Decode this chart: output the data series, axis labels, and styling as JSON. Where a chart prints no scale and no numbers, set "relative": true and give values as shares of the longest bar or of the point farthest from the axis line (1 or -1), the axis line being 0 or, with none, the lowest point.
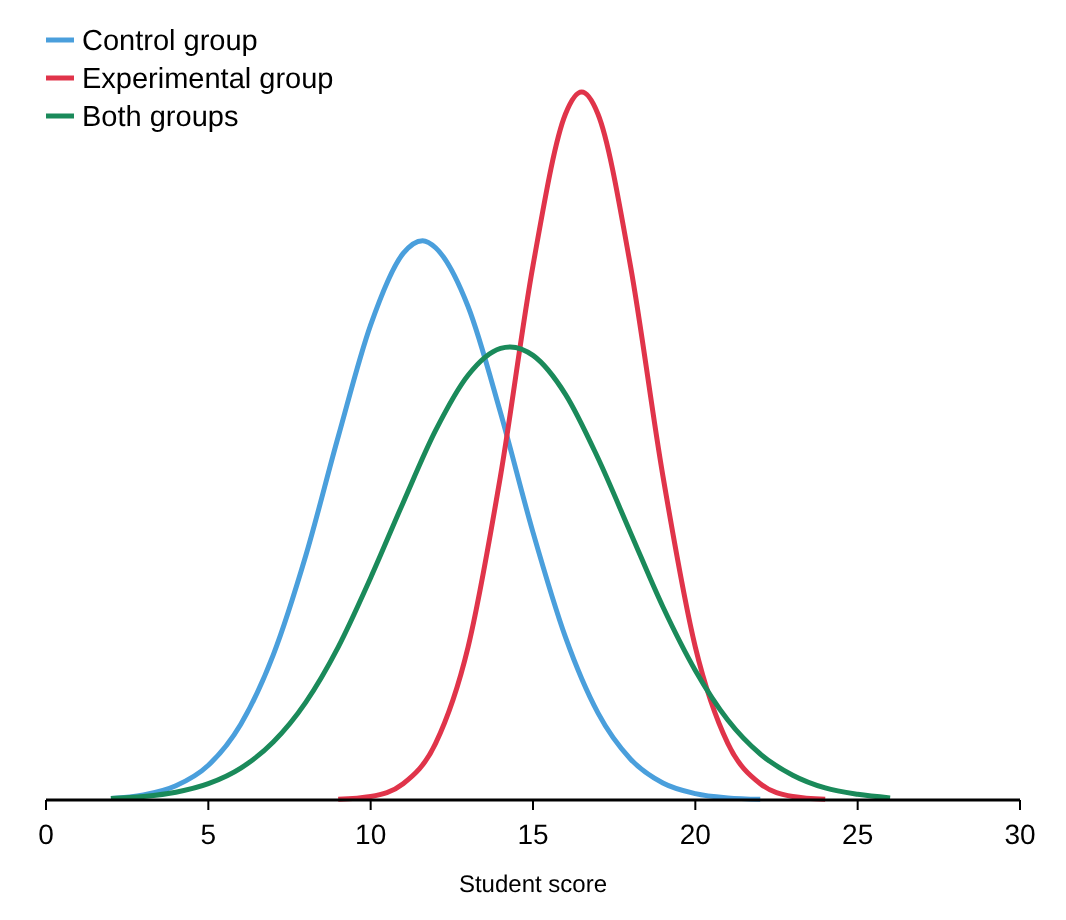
{
  "chart_data": {
    "type": "line",
    "xlabel": "Student score",
    "relative": true,
    "xlim": [
      0,
      30
    ],
    "xticks": [
      0,
      5,
      10,
      15,
      20,
      25,
      30
    ],
    "grid": false,
    "legend": "top left",
    "marker": "none",
    "line_style": "solid",
    "series": [
      {
        "name": "Control group",
        "color": "#4a9fdc",
        "x": [
          2,
          3,
          4,
          5,
          6,
          7,
          8,
          9,
          10,
          11,
          11.6,
          12,
          13,
          14,
          15,
          16,
          17,
          18,
          19,
          20,
          21,
          22
        ],
        "values": [
          0.002,
          0.007,
          0.02,
          0.049,
          0.107,
          0.205,
          0.345,
          0.513,
          0.671,
          0.772,
          0.79,
          0.78,
          0.697,
          0.547,
          0.378,
          0.23,
          0.123,
          0.058,
          0.024,
          0.009,
          0.003,
          0.001
        ]
      },
      {
        "name": "Experimental group",
        "color": "#e0344a",
        "x": [
          9,
          10,
          11,
          12,
          13,
          14,
          15,
          16,
          16.5,
          17,
          18,
          19,
          20,
          21,
          22,
          23,
          24
        ],
        "values": [
          0.001,
          0.005,
          0.023,
          0.08,
          0.216,
          0.458,
          0.755,
          0.969,
          1,
          0.969,
          0.755,
          0.458,
          0.216,
          0.08,
          0.023,
          0.005,
          0.001
        ]
      },
      {
        "name": "Both groups",
        "color": "#1a8a5a",
        "x": [
          2,
          3,
          4,
          5,
          6,
          7,
          8,
          9,
          10,
          11,
          12,
          13,
          14,
          14.3,
          15,
          16,
          17,
          18,
          19,
          20,
          21,
          22,
          23,
          24,
          25,
          26
        ],
        "values": [
          0.002,
          0.005,
          0.011,
          0.023,
          0.045,
          0.082,
          0.138,
          0.216,
          0.314,
          0.42,
          0.522,
          0.6,
          0.638,
          0.64,
          0.628,
          0.573,
          0.483,
          0.378,
          0.273,
          0.183,
          0.113,
          0.065,
          0.035,
          0.017,
          0.008,
          0.003
        ]
      }
    ]
  }
}
